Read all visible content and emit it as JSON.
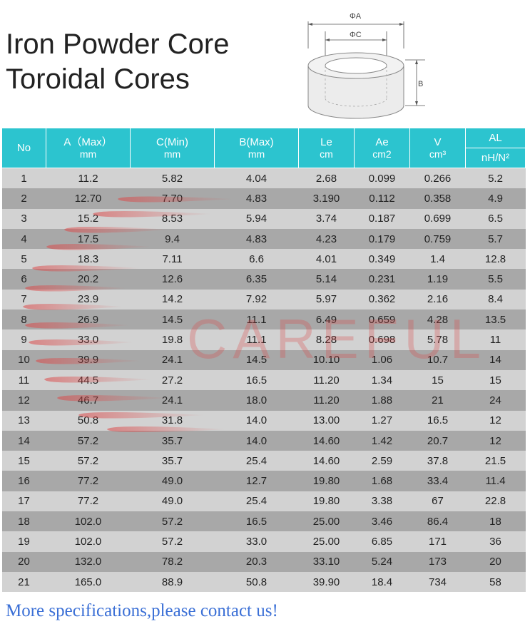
{
  "title": {
    "line1": "Iron Powder Core",
    "line2": "Toroidal Cores"
  },
  "diagram": {
    "label_a": "ΦA",
    "label_c": "ΦC",
    "label_b": "B"
  },
  "table": {
    "headers": [
      {
        "top": "No",
        "sub": ""
      },
      {
        "top": "A（Max）",
        "sub": "mm"
      },
      {
        "top": "C(Min)",
        "sub": "mm"
      },
      {
        "top": "B(Max)",
        "sub": "mm"
      },
      {
        "top": "Le",
        "sub": "cm"
      },
      {
        "top": "Ae",
        "sub": "cm2"
      },
      {
        "top": "V",
        "sub": "cm³"
      },
      {
        "top": "AL",
        "sub": "nH/N²"
      }
    ],
    "rows": [
      [
        "1",
        "11.2",
        "5.82",
        "4.04",
        "2.68",
        "0.099",
        "0.266",
        "5.2"
      ],
      [
        "2",
        "12.70",
        "7.70",
        "4.83",
        "3.190",
        "0.112",
        "0.358",
        "4.9"
      ],
      [
        "3",
        "15.2",
        "8.53",
        "5.94",
        "3.74",
        "0.187",
        "0.699",
        "6.5"
      ],
      [
        "4",
        "17.5",
        "9.4",
        "4.83",
        "4.23",
        "0.179",
        "0.759",
        "5.7"
      ],
      [
        "5",
        "18.3",
        "7.11",
        "6.6",
        "4.01",
        "0.349",
        "1.4",
        "12.8"
      ],
      [
        "6",
        "20.2",
        "12.6",
        "6.35",
        "5.14",
        "0.231",
        "1.19",
        "5.5"
      ],
      [
        "7",
        "23.9",
        "14.2",
        "7.92",
        "5.97",
        "0.362",
        "2.16",
        "8.4"
      ],
      [
        "8",
        "26.9",
        "14.5",
        "11.1",
        "6.49",
        "0.659",
        "4.28",
        "13.5"
      ],
      [
        "9",
        "33.0",
        "19.8",
        "11.1",
        "8.28",
        "0.698",
        "5.78",
        "11"
      ],
      [
        "10",
        "39.9",
        "24.1",
        "14.5",
        "10.10",
        "1.06",
        "10.7",
        "14"
      ],
      [
        "11",
        "44.5",
        "27.2",
        "16.5",
        "11.20",
        "1.34",
        "15",
        "15"
      ],
      [
        "12",
        "46.7",
        "24.1",
        "18.0",
        "11.20",
        "1.88",
        "21",
        "24"
      ],
      [
        "13",
        "50.8",
        "31.8",
        "14.0",
        "13.00",
        "1.27",
        "16.5",
        "12"
      ],
      [
        "14",
        "57.2",
        "35.7",
        "14.0",
        "14.60",
        "1.42",
        "20.7",
        "12"
      ],
      [
        "15",
        "57.2",
        "35.7",
        "25.4",
        "14.60",
        "2.59",
        "37.8",
        "21.5"
      ],
      [
        "16",
        "77.2",
        "49.0",
        "12.7",
        "19.80",
        "1.68",
        "33.4",
        "11.4"
      ],
      [
        "17",
        "77.2",
        "49.0",
        "25.4",
        "19.80",
        "3.38",
        "67",
        "22.8"
      ],
      [
        "18",
        "102.0",
        "57.2",
        "16.5",
        "25.00",
        "3.46",
        "86.4",
        "18"
      ],
      [
        "19",
        "102.0",
        "57.2",
        "33.0",
        "25.00",
        "6.85",
        "171",
        "36"
      ],
      [
        "20",
        "132.0",
        "78.2",
        "20.3",
        "33.10",
        "5.24",
        "173",
        "20"
      ],
      [
        "21",
        "165.0",
        "88.9",
        "50.8",
        "39.90",
        "18.4",
        "734",
        "58"
      ]
    ]
  },
  "watermark": "CAREFUL",
  "footer": "More specifications,please contact us!",
  "colors": {
    "header_bg": "#2cc4cf",
    "row_light": "#d2d2d2",
    "row_dark": "#a8a8a8",
    "footer_text": "#3a6fd6",
    "watermark": "#dc4646"
  }
}
